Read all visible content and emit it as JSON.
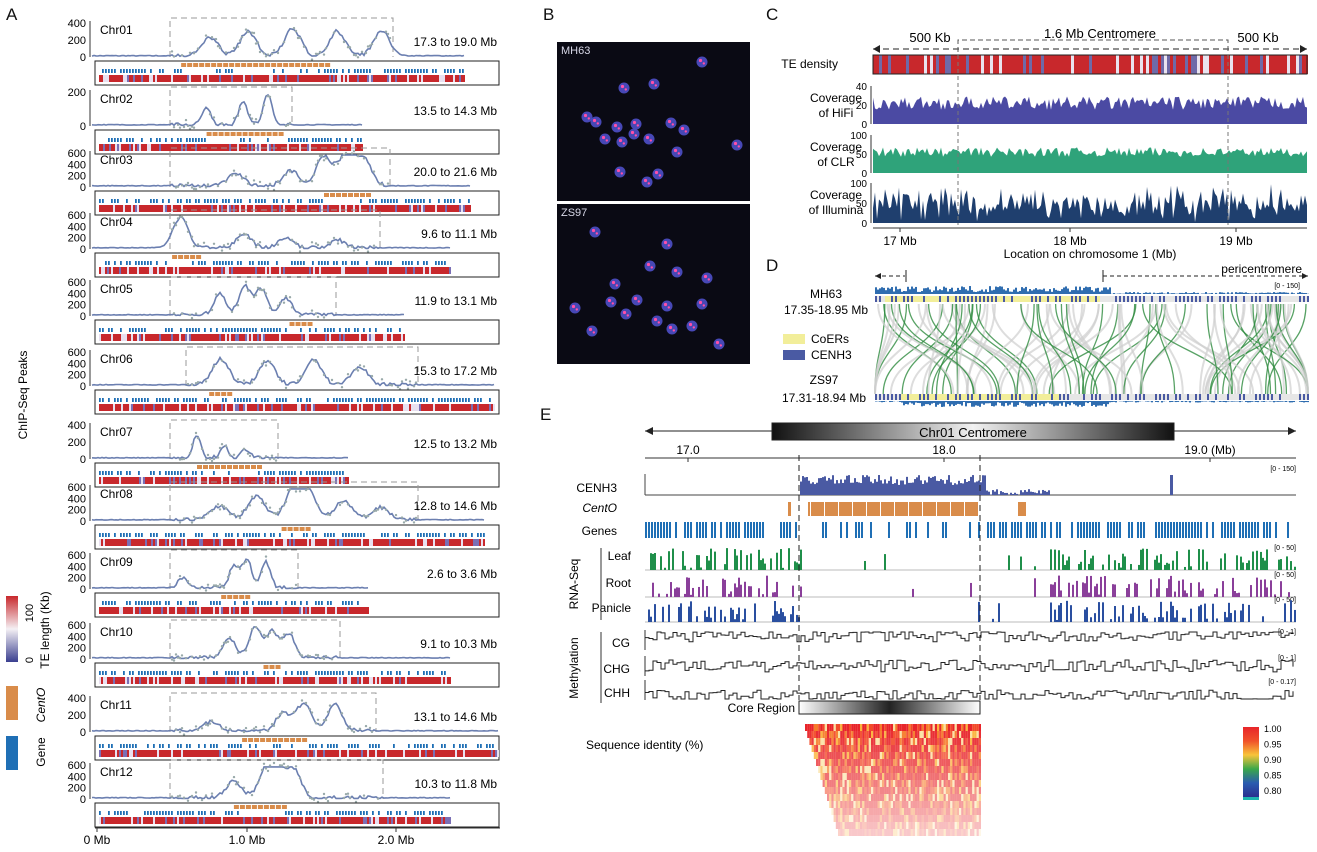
{
  "panels": {
    "a": "A",
    "b": "B",
    "c": "C",
    "d": "D",
    "e": "E"
  },
  "panel_a": {
    "y_axis_title": "ChIP-Seq Peaks",
    "x_ticks": [
      "0 Mb",
      "1.0 Mb",
      "2.0 Mb"
    ],
    "chromosomes": [
      {
        "name": "Chr01",
        "range": "17.3 to 19.0 Mb",
        "ticks": [
          "400",
          "200",
          "0"
        ]
      },
      {
        "name": "Chr02",
        "range": "13.5 to 14.3 Mb",
        "ticks": [
          "200",
          "0"
        ]
      },
      {
        "name": "Chr03",
        "range": "20.0 to 21.6 Mb",
        "ticks": [
          "600",
          "400",
          "200",
          "0"
        ]
      },
      {
        "name": "Chr04",
        "range": "9.6 to 11.1 Mb",
        "ticks": [
          "600",
          "400",
          "200",
          "0"
        ]
      },
      {
        "name": "Chr05",
        "range": "11.9 to 13.1 Mb",
        "ticks": [
          "600",
          "400",
          "200",
          "0"
        ]
      },
      {
        "name": "Chr06",
        "range": "15.3 to 17.2 Mb",
        "ticks": [
          "600",
          "400",
          "200",
          "0"
        ]
      },
      {
        "name": "Chr07",
        "range": "12.5 to 13.2 Mb",
        "ticks": [
          "400",
          "200",
          "0"
        ]
      },
      {
        "name": "Chr08",
        "range": "12.8 to 14.6 Mb",
        "ticks": [
          "600",
          "400",
          "200",
          "0"
        ]
      },
      {
        "name": "Chr09",
        "range": "2.6 to 3.6 Mb",
        "ticks": [
          "600",
          "400",
          "200",
          "0"
        ]
      },
      {
        "name": "Chr10",
        "range": "9.1 to 10.3 Mb",
        "ticks": [
          "600",
          "400",
          "200",
          "0"
        ]
      },
      {
        "name": "Chr11",
        "range": "13.1 to 14.6 Mb",
        "ticks": [
          "400",
          "200",
          "0"
        ]
      },
      {
        "name": "Chr12",
        "range": "10.3 to 11.8 Mb",
        "ticks": [
          "600",
          "400",
          "200",
          "0"
        ]
      }
    ],
    "legend": {
      "colorbar_title": "TE length (Kb)",
      "colorbar_max": "100",
      "colorbar_min": "0",
      "cento": "CentO",
      "gene": "Gene"
    },
    "colors": {
      "cento": "#d98c4a",
      "gene": "#1f6fb5",
      "te_high": "#c8282c",
      "te_low": "#3a3f8f",
      "line": "#6b7fb0"
    }
  },
  "panel_b": {
    "top": "MH63",
    "bottom": "ZS97"
  },
  "panel_c": {
    "left_span": "500 Kb",
    "center_span": "1.6 Mb Centromere",
    "right_span": "500 Kb",
    "tracks": [
      {
        "label1": "TE density",
        "label2": ""
      },
      {
        "label1": "Coverage",
        "label2": "of HiFi",
        "ticks": [
          "40",
          "20",
          "0"
        ]
      },
      {
        "label1": "Coverage",
        "label2": "of CLR",
        "ticks": [
          "100",
          "50",
          "0"
        ]
      },
      {
        "label1": "Coverage",
        "label2": "of Illumina",
        "ticks": [
          "100",
          "50",
          "0"
        ]
      }
    ],
    "x_ticks": [
      "17 Mb",
      "18 Mb",
      "19 Mb"
    ],
    "x_title": "Location on chromosome 1 (Mb)",
    "colors": {
      "hifi": "#4b4aa3",
      "clr": "#2fa37a",
      "illumina": "#1f3f6e"
    }
  },
  "panel_d": {
    "pericentromere": "pericentromere",
    "top_name": "MH63",
    "top_range": "17.35-18.95 Mb",
    "bottom_name": "ZS97",
    "bottom_range": "17.31-18.94 Mb",
    "scale": "[0 - 150]",
    "legend_coers": "CoERs",
    "legend_cenh3": "CENH3",
    "colors": {
      "coers": "#f2ee9a",
      "cenh3": "#4a5aa3",
      "link": "#2e8b3e"
    }
  },
  "panel_e": {
    "centromere_label": "Chr01 Centromere",
    "x_ticks": [
      "17.0",
      "18.0",
      "19.0 (Mb)"
    ],
    "tracks": {
      "cenh3": "CENH3",
      "cento": "CentO",
      "genes": "Genes"
    },
    "rnaseq_group": "RNA-Seq",
    "rnaseq": [
      "Leaf",
      "Root",
      "Panicle"
    ],
    "methylation_group": "Methylation",
    "methylation": [
      "CG",
      "CHG",
      "CHH"
    ],
    "scales": {
      "cenh3": "[0 - 150]",
      "leaf": "[0 - 50]",
      "root": "[0 - 50]",
      "panicle": "[0 - 50]",
      "cg": "[0 - 1]",
      "chg": "[0 - 1]",
      "chh": "[0 - 0.17]"
    },
    "core_region": "Core Region",
    "identity_label": "Sequence identity (%)",
    "identity_scale": [
      "1.00",
      "0.95",
      "0.90",
      "0.85",
      "0.80"
    ],
    "colors": {
      "cenh3": "#4a5aa3",
      "cento": "#d98c4a",
      "genes": "#1f6fb5",
      "leaf": "#1f8f4a",
      "root": "#8a3f9a",
      "panicle": "#2a4fa0"
    }
  }
}
